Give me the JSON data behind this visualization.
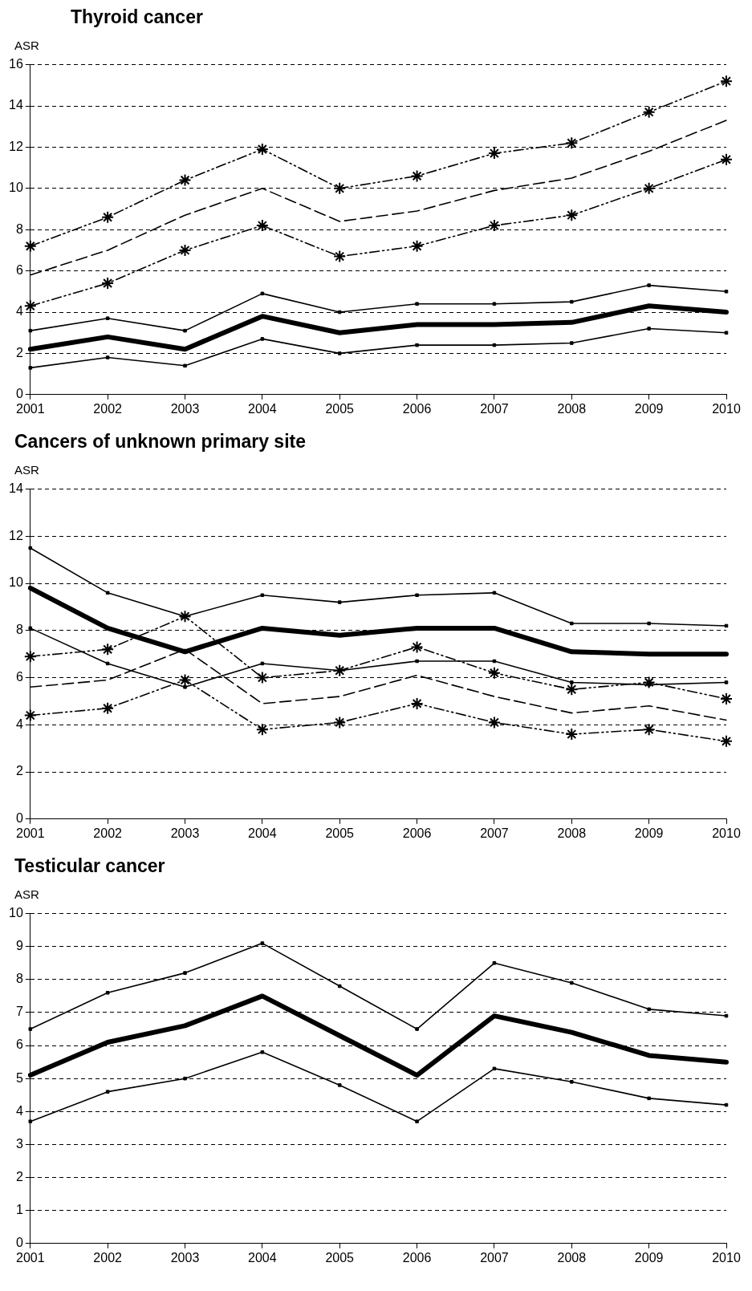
{
  "chart_data": [
    {
      "type": "line",
      "title": "Thyroid cancer",
      "ylabel": "ASR",
      "categories": [
        "2001",
        "2002",
        "2003",
        "2004",
        "2005",
        "2006",
        "2007",
        "2008",
        "2009",
        "2010"
      ],
      "ylim": [
        0,
        16
      ],
      "yticks": [
        0,
        2,
        4,
        6,
        8,
        10,
        12,
        14,
        16
      ],
      "grid": "y",
      "legend": false,
      "series": [
        {
          "color": "#000000",
          "marker": "square",
          "line_style": "solid",
          "values": [
            3.1,
            3.7,
            3.1,
            4.9,
            4.0,
            4.4,
            4.4,
            4.5,
            5.3,
            5.0
          ]
        },
        {
          "color": "#000000",
          "marker": "none",
          "line_style": "solid",
          "values": [
            2.2,
            2.8,
            2.2,
            3.8,
            3.0,
            3.4,
            3.4,
            3.5,
            4.3,
            4.0
          ]
        },
        {
          "color": "#000000",
          "marker": "square",
          "line_style": "solid",
          "values": [
            1.3,
            1.8,
            1.4,
            2.7,
            2.0,
            2.4,
            2.4,
            2.5,
            3.2,
            3.0
          ]
        },
        {
          "color": "#000000",
          "marker": "cross",
          "line_style": "dotted",
          "values": [
            7.2,
            8.6,
            10.4,
            11.9,
            10.0,
            10.6,
            11.7,
            12.2,
            13.7,
            15.2
          ]
        },
        {
          "color": "#000000",
          "marker": "none",
          "line_style": "dashed",
          "values": [
            5.8,
            7.0,
            8.7,
            10.0,
            8.4,
            8.9,
            9.9,
            10.5,
            11.8,
            13.3
          ]
        },
        {
          "color": "#000000",
          "marker": "cross",
          "line_style": "dotted",
          "values": [
            4.3,
            5.4,
            7.0,
            8.2,
            6.7,
            7.2,
            8.2,
            8.7,
            10.0,
            11.4
          ]
        }
      ]
    },
    {
      "type": "line",
      "title": "Cancers of unknown primary site",
      "ylabel": "ASR",
      "categories": [
        "2001",
        "2002",
        "2003",
        "2004",
        "2005",
        "2006",
        "2007",
        "2008",
        "2009",
        "2010"
      ],
      "ylim": [
        0,
        14
      ],
      "yticks": [
        0,
        2,
        4,
        6,
        8,
        10,
        12,
        14
      ],
      "grid": "y",
      "legend": false,
      "series": [
        {
          "color": "#000000",
          "marker": "square",
          "line_style": "solid",
          "values": [
            11.5,
            9.6,
            8.6,
            9.5,
            9.2,
            9.5,
            9.6,
            8.3,
            8.3,
            8.2
          ]
        },
        {
          "color": "#000000",
          "marker": "none",
          "line_style": "solid",
          "values": [
            9.8,
            8.1,
            7.1,
            8.1,
            7.8,
            8.1,
            8.1,
            7.1,
            7.0,
            7.0
          ]
        },
        {
          "color": "#000000",
          "marker": "square",
          "line_style": "solid",
          "values": [
            8.1,
            6.6,
            5.6,
            6.6,
            6.3,
            6.7,
            6.7,
            5.8,
            5.7,
            5.8
          ]
        },
        {
          "color": "#000000",
          "marker": "cross",
          "line_style": "dotted",
          "values": [
            6.9,
            7.2,
            8.6,
            6.0,
            6.3,
            7.3,
            6.2,
            5.5,
            5.8,
            5.1
          ]
        },
        {
          "color": "#000000",
          "marker": "none",
          "line_style": "dashed",
          "values": [
            5.6,
            5.9,
            7.2,
            4.9,
            5.2,
            6.1,
            5.2,
            4.5,
            4.8,
            4.2
          ]
        },
        {
          "color": "#000000",
          "marker": "cross",
          "line_style": "dotted",
          "values": [
            4.4,
            4.7,
            5.9,
            3.8,
            4.1,
            4.9,
            4.1,
            3.6,
            3.8,
            3.3
          ]
        }
      ]
    },
    {
      "type": "line",
      "title": "Testicular cancer",
      "ylabel": "ASR",
      "categories": [
        "2001",
        "2002",
        "2003",
        "2004",
        "2005",
        "2006",
        "2007",
        "2008",
        "2009",
        "2010"
      ],
      "ylim": [
        0,
        10
      ],
      "yticks": [
        0,
        1,
        2,
        3,
        4,
        5,
        6,
        7,
        8,
        9,
        10
      ],
      "grid": "y",
      "legend": false,
      "series": [
        {
          "color": "#000000",
          "marker": "square",
          "line_style": "solid",
          "values": [
            6.5,
            7.6,
            8.2,
            9.1,
            7.8,
            6.5,
            8.5,
            7.9,
            7.1,
            6.9
          ]
        },
        {
          "color": "#000000",
          "marker": "none",
          "line_style": "solid",
          "values": [
            5.1,
            6.1,
            6.6,
            7.5,
            6.3,
            5.1,
            6.9,
            6.4,
            5.7,
            5.5
          ]
        },
        {
          "color": "#000000",
          "marker": "square",
          "line_style": "solid",
          "values": [
            3.7,
            4.6,
            5.0,
            5.8,
            4.8,
            3.7,
            5.3,
            4.9,
            4.4,
            4.2
          ]
        },
        {
          "color": "#000000",
          "marker": "none",
          "line_style": "dashed",
          "values": [
            0,
            0,
            0,
            0,
            0,
            0,
            0,
            0,
            0,
            0
          ]
        }
      ]
    }
  ]
}
